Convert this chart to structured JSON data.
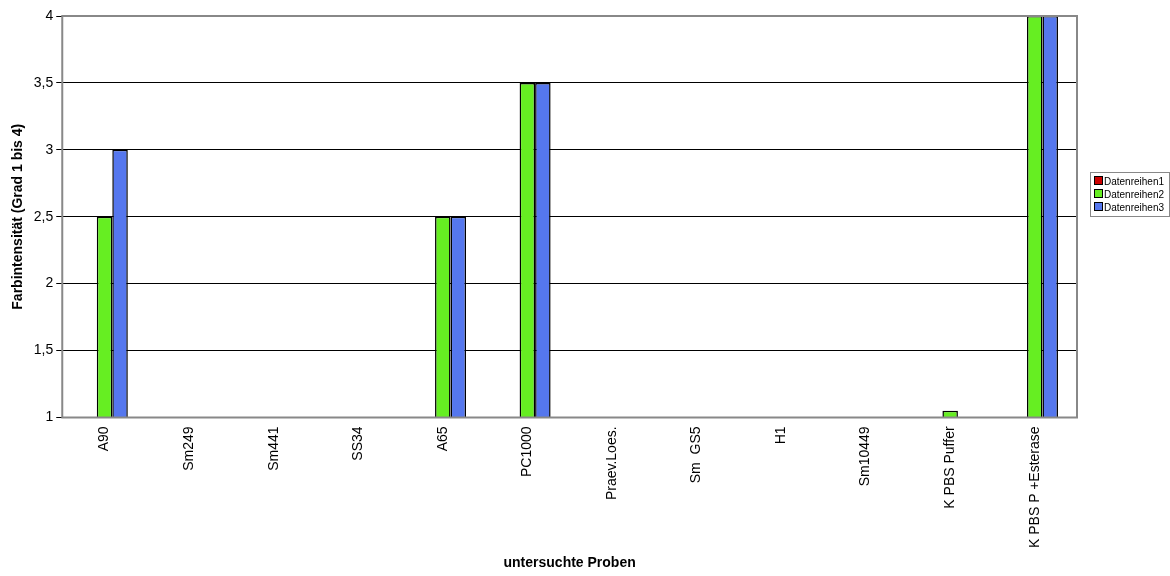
{
  "chart_data": {
    "type": "bar",
    "xlabel": "untersuchte Proben",
    "ylabel": "Farbintensität (Grad 1 bis 4)",
    "categories": [
      "A90",
      "Sm249",
      "Sm441",
      "SS34",
      "A65",
      "PC1000",
      "Praev.Loes.",
      "Sm  GS5",
      "H1",
      "Sm10449",
      "K PBS Puffer",
      "K PBS P +Esterase"
    ],
    "series": [
      {
        "name": "Datenreihen1",
        "color": "#cc0000",
        "values": [
          null,
          null,
          null,
          null,
          null,
          null,
          null,
          null,
          null,
          null,
          null,
          null
        ]
      },
      {
        "name": "Datenreihen2",
        "color": "#66ee22",
        "values": [
          2.5,
          null,
          null,
          null,
          2.5,
          3.5,
          null,
          null,
          null,
          null,
          1.05,
          4
        ]
      },
      {
        "name": "Datenreihen3",
        "color": "#5577ee",
        "values": [
          3,
          null,
          null,
          null,
          2.5,
          3.5,
          null,
          null,
          null,
          null,
          null,
          4
        ]
      }
    ],
    "ylim": [
      1,
      4
    ],
    "yticks": [
      1,
      {
        "value": 1.5,
        "label": "1,5"
      },
      2,
      {
        "value": 2.5,
        "label": "2,5"
      },
      3,
      {
        "value": 3.5,
        "label": "3,5"
      },
      4
    ],
    "grid": "y",
    "legend": "right"
  }
}
